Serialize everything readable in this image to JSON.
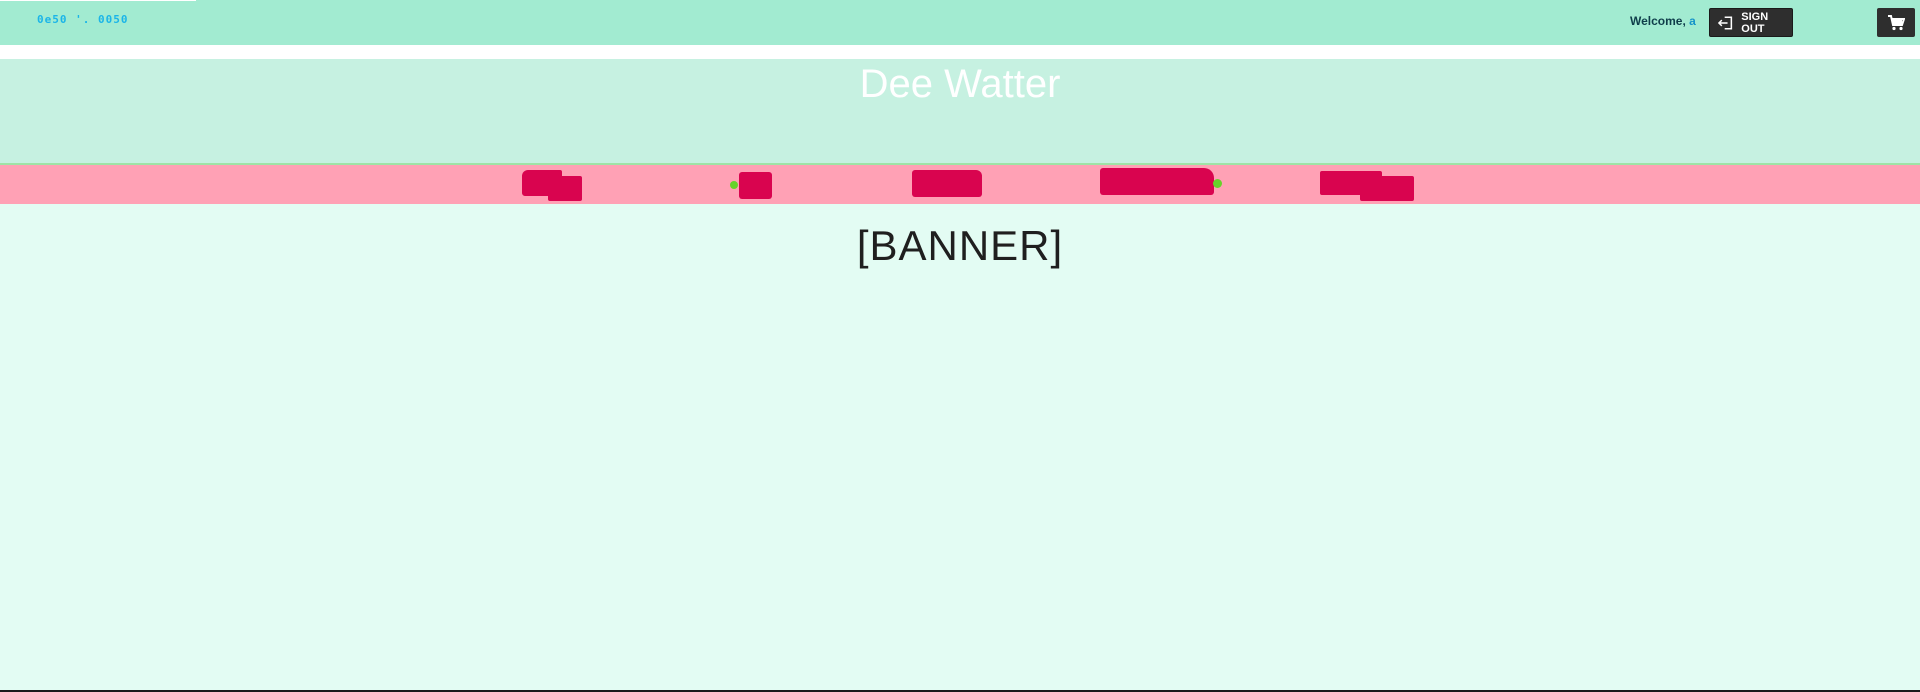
{
  "topbar": {
    "left_text": "0e50 '. 0050",
    "welcome_prefix": "Welcome, ",
    "welcome_name": "a",
    "signout_label": "SIGN OUT"
  },
  "header": {
    "site_title": "Dee Watter"
  },
  "main": {
    "banner_text": "[BANNER]"
  },
  "colors": {
    "topbar_bg": "#a2ebd1",
    "header_bg": "#c6f1e1",
    "nav_bg": "#ffa1b5",
    "nav_item": "#d9044f",
    "page_bg": "#e3fcf3",
    "button_bg": "#2e2e2e"
  },
  "icons": {
    "signout": "sign-out-icon",
    "cart": "cart-icon"
  }
}
